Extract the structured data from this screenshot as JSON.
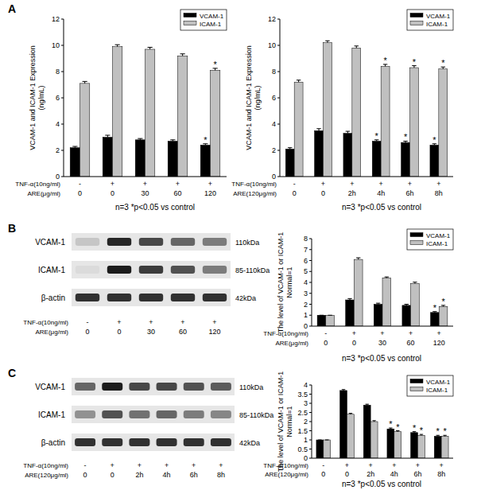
{
  "panel_labels": [
    "A",
    "B",
    "C"
  ],
  "chart_data": [
    {
      "type": "bar",
      "ylabel": [
        "VCAM-1 and ICAM-1 Expression",
        "(ng/mL)"
      ],
      "x_label_rows": [
        {
          "title": "TNF-α(10ng/ml)",
          "labels": [
            "-",
            "+",
            "+",
            "+",
            "+"
          ]
        }
      ],
      "xlabel": "ARE(μg/ml)",
      "categories": [
        "0",
        "0",
        "30",
        "60",
        "120"
      ],
      "series": [
        {
          "name": "VCAM-1",
          "color": "#000000",
          "values": [
            2.2,
            3.0,
            2.8,
            2.7,
            2.4
          ],
          "errors": [
            0.1,
            0.15,
            0.1,
            0.1,
            0.1
          ],
          "significance": [
            null,
            null,
            null,
            null,
            "*"
          ]
        },
        {
          "name": "ICAM-1",
          "color": "#c0c0c0",
          "values": [
            7.1,
            9.9,
            9.7,
            9.2,
            8.1
          ],
          "errors": [
            0.15,
            0.15,
            0.15,
            0.15,
            0.15
          ],
          "significance": [
            null,
            null,
            null,
            null,
            "*"
          ]
        }
      ],
      "ylim": [
        0,
        12
      ],
      "yticks": [
        0,
        2,
        4,
        6,
        8,
        10,
        12
      ],
      "grid": false,
      "legend": "upper right",
      "note": "n=3 *p<0.05 vs control"
    },
    {
      "type": "bar",
      "ylabel": [
        "VCAM-1 and ICAM-1 Expression",
        "(ng/mL)"
      ],
      "x_label_rows": [
        {
          "title": "TNF-α(10ng/ml)",
          "labels": [
            "-",
            "+",
            "+",
            "+",
            "+",
            "+"
          ]
        }
      ],
      "xlabel": "ARE(120μg/ml)",
      "categories": [
        "0",
        "0",
        "2h",
        "4h",
        "6h",
        "8h"
      ],
      "series": [
        {
          "name": "VCAM-1",
          "color": "#000000",
          "values": [
            2.1,
            3.5,
            3.3,
            2.7,
            2.6,
            2.4
          ],
          "errors": [
            0.1,
            0.15,
            0.15,
            0.1,
            0.1,
            0.1
          ],
          "significance": [
            null,
            null,
            null,
            "*",
            "*",
            "*"
          ]
        },
        {
          "name": "ICAM-1",
          "color": "#c0c0c0",
          "values": [
            7.2,
            10.2,
            9.8,
            8.4,
            8.3,
            8.2
          ],
          "errors": [
            0.15,
            0.15,
            0.15,
            0.15,
            0.15,
            0.15
          ],
          "significance": [
            null,
            null,
            null,
            "*",
            "*",
            "*"
          ]
        }
      ],
      "ylim": [
        0,
        12
      ],
      "yticks": [
        0,
        2,
        4,
        6,
        8,
        10,
        12
      ],
      "grid": false,
      "legend": "upper right",
      "note": "n=3 *p<0.05 vs control"
    },
    {
      "type": "bar",
      "ylabel": [
        "The level of VCAM-1 or ICAM-1",
        "Normal=1"
      ],
      "x_label_rows": [
        {
          "title": "TNF-α(10ng/ml)",
          "labels": [
            "-",
            "+",
            "+",
            "+",
            "+"
          ]
        }
      ],
      "xlabel": "ARE(μg/ml)",
      "categories": [
        "0",
        "0",
        "30",
        "60",
        "120"
      ],
      "series": [
        {
          "name": "VCAM-1",
          "color": "#000000",
          "values": [
            1,
            2.4,
            2.0,
            1.9,
            1.25
          ],
          "errors": [
            0,
            0.12,
            0.1,
            0.1,
            0.08
          ],
          "significance": [
            null,
            null,
            null,
            null,
            "*"
          ]
        },
        {
          "name": "ICAM-1",
          "color": "#c0c0c0",
          "values": [
            1,
            6.1,
            4.4,
            3.9,
            1.8
          ],
          "errors": [
            0,
            0.15,
            0.1,
            0.12,
            0.1
          ],
          "significance": [
            null,
            null,
            null,
            null,
            "*"
          ]
        }
      ],
      "ylim": [
        0,
        8
      ],
      "yticks": [
        0,
        1,
        2,
        3,
        4,
        5,
        6,
        7,
        8
      ],
      "grid": false,
      "legend": "upper right",
      "note": "n=3 *p<0.05 vs control"
    },
    {
      "type": "bar",
      "ylabel": [
        "The level of VCAM-1 or ICAM-1",
        "Normal=1"
      ],
      "x_label_rows": [
        {
          "title": "TNF-α(10ng/ml)",
          "labels": [
            "-",
            "+",
            "+",
            "+",
            "+",
            "+"
          ]
        }
      ],
      "xlabel": "ARE(120μg/ml)",
      "categories": [
        "0",
        "0",
        "2h",
        "4h",
        "6h",
        "8h"
      ],
      "series": [
        {
          "name": "VCAM-1",
          "color": "#000000",
          "values": [
            1,
            3.7,
            2.9,
            1.6,
            1.4,
            1.2
          ],
          "errors": [
            0,
            0.05,
            0.05,
            0.05,
            0.05,
            0.05
          ],
          "significance": [
            null,
            null,
            null,
            "*",
            "*",
            "*"
          ]
        },
        {
          "name": "ICAM-1",
          "color": "#c0c0c0",
          "values": [
            1,
            2.4,
            2.0,
            1.45,
            1.25,
            1.2
          ],
          "errors": [
            0,
            0.05,
            0.05,
            0.05,
            0.05,
            0.05
          ],
          "significance": [
            null,
            null,
            null,
            "*",
            "*",
            "*"
          ]
        }
      ],
      "ylim": [
        0,
        4
      ],
      "yticks": [
        0,
        0.5,
        1,
        1.5,
        2,
        2.5,
        3,
        3.5,
        4
      ],
      "grid": false,
      "legend": "upper right",
      "note": "n=3 *p<0.05 vs control"
    }
  ],
  "blots": [
    {
      "rows": [
        {
          "label": "VCAM-1",
          "size": "110kDa",
          "band_intensity": [
            0.15,
            0.9,
            0.75,
            0.6,
            0.5
          ]
        },
        {
          "label": "ICAM-1",
          "size": "85-110kDa",
          "band_intensity": [
            0.05,
            0.95,
            0.8,
            0.7,
            0.5
          ]
        },
        {
          "label": "β-actin",
          "size": "42kDa",
          "band_intensity": [
            0.85,
            0.85,
            0.85,
            0.85,
            0.85
          ]
        }
      ],
      "x_label_rows": [
        {
          "title": "TNF-α(10ng/ml)",
          "labels": [
            "-",
            "+",
            "+",
            "+",
            "+"
          ]
        },
        {
          "title": "ARE(μg/ml)",
          "labels": [
            "0",
            "0",
            "30",
            "60",
            "120"
          ]
        }
      ]
    },
    {
      "rows": [
        {
          "label": "VCAM-1",
          "size": "110kDa",
          "band_intensity": [
            0.6,
            0.95,
            0.75,
            0.75,
            0.7,
            0.65
          ]
        },
        {
          "label": "ICAM-1",
          "size": "85-110kDa",
          "band_intensity": [
            0.4,
            0.7,
            0.55,
            0.6,
            0.5,
            0.45
          ]
        },
        {
          "label": "β-actin",
          "size": "42kDa",
          "band_intensity": [
            0.85,
            0.85,
            0.85,
            0.85,
            0.85,
            0.85
          ]
        }
      ],
      "x_label_rows": [
        {
          "title": "TNF-α(10ng/ml)",
          "labels": [
            "-",
            "+",
            "+",
            "+",
            "+",
            "+"
          ]
        },
        {
          "title": "ARE(120μg/ml)",
          "labels": [
            "0",
            "0",
            "2h",
            "4h",
            "6h",
            "8h"
          ]
        }
      ]
    }
  ]
}
